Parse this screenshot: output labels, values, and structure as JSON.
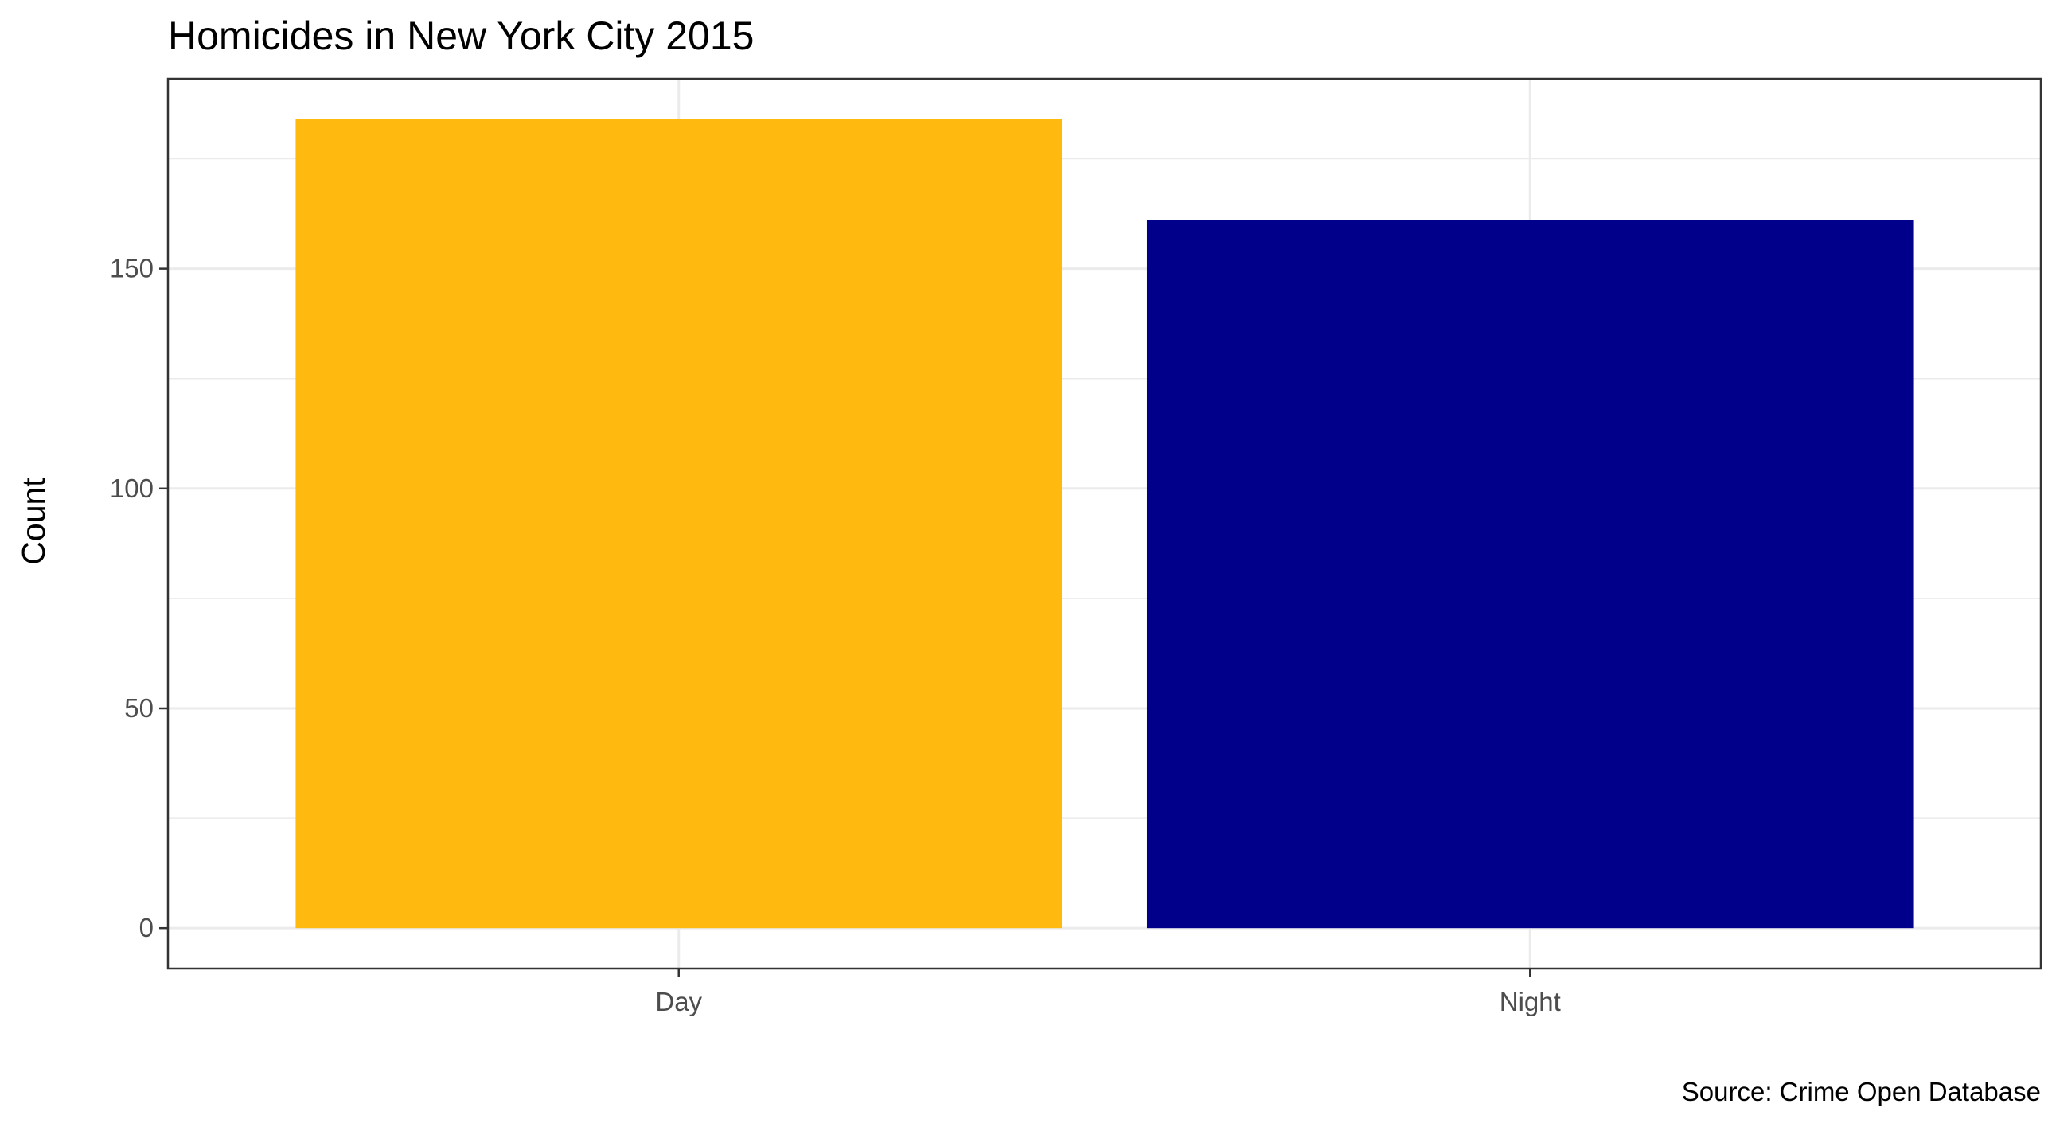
{
  "chart_data": {
    "type": "bar",
    "title": "Homicides in New York City 2015",
    "xlabel": "",
    "ylabel": "Count",
    "caption": "Source: Crime Open Database",
    "categories": [
      "Day",
      "Night"
    ],
    "values": [
      184,
      161
    ],
    "colors": [
      "#FFB90F",
      "#00008B"
    ],
    "ylim": [
      -9.2,
      193.2
    ],
    "yticks": [
      0,
      50,
      100,
      150
    ],
    "ytick_labels": [
      "0",
      "50",
      "100",
      "150"
    ],
    "grid": true,
    "legend": "none"
  }
}
